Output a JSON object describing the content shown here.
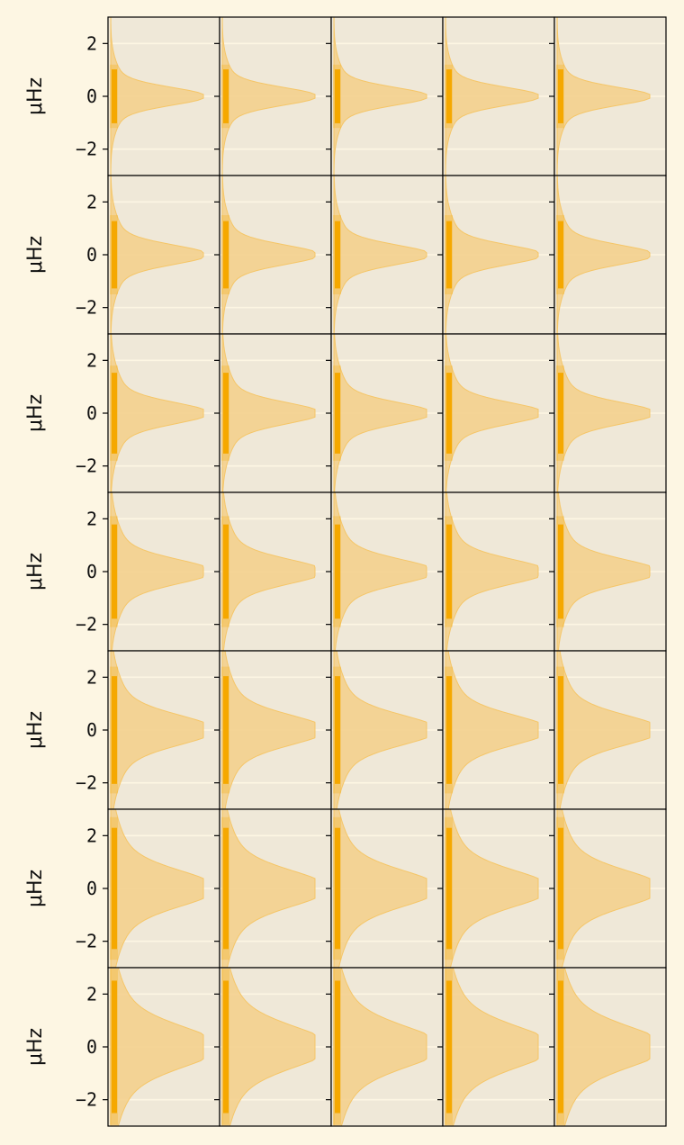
{
  "figure": {
    "background": "#fdf6e3",
    "axes_background": "#efe8d8",
    "grid_color": "#fdf6e3",
    "fill_color": "#f3cf8a",
    "edge_color": "#f5c668",
    "trace_color": "#f5a800"
  },
  "chart_data": {
    "type": "area",
    "title": "",
    "layout": {
      "rows": 7,
      "cols": 5
    },
    "ylabel": "μHz",
    "ylim": [
      -3,
      3
    ],
    "yticks": [
      -2,
      0,
      2
    ],
    "ytick_labels": [
      "−2",
      "0",
      "2"
    ],
    "grid": true,
    "shared_axes": true,
    "xticks_visible": false,
    "density_profile": {
      "description_free_values": true,
      "y": [
        -3.0,
        -2.5,
        -2.0,
        -1.5,
        -1.0,
        -0.5,
        0.0,
        0.5,
        1.0,
        1.5,
        2.0,
        2.5,
        3.0
      ],
      "row_peak_half_width": [
        0.55,
        0.6,
        0.65,
        0.75,
        0.9,
        1.05,
        1.2
      ],
      "row_tail_spread": [
        1.5,
        1.7,
        1.9,
        2.1,
        2.4,
        2.7,
        3.0
      ],
      "row_tail_height": [
        0.18,
        0.2,
        0.22,
        0.25,
        0.28,
        0.31,
        0.34
      ]
    }
  }
}
